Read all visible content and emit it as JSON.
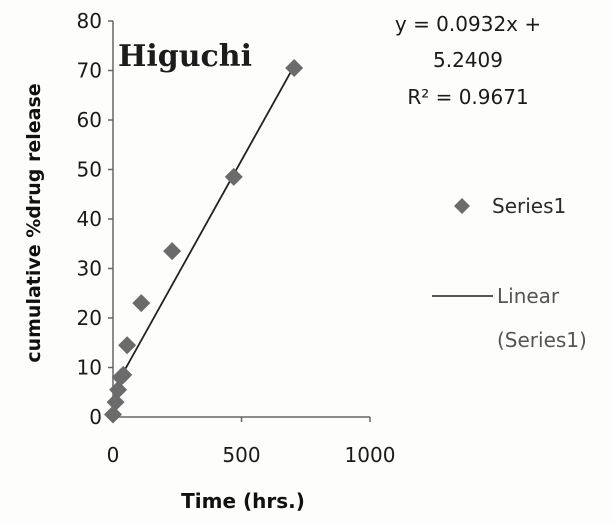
{
  "chart_data": {
    "type": "scatter",
    "title": "Higuchi",
    "xlabel": "Time (hrs.)",
    "ylabel": "cumulative %drug release",
    "xlim": [
      0,
      1000
    ],
    "ylim": [
      0,
      80
    ],
    "x_ticks": [
      "0",
      "500",
      "1000"
    ],
    "y_ticks": [
      "0",
      "10",
      "20",
      "30",
      "40",
      "50",
      "60",
      "70",
      "80"
    ],
    "grid": false,
    "legend_position": "right",
    "series": [
      {
        "name": "Series1",
        "marker": "diamond",
        "color": "#6b6b6b",
        "x": [
          0,
          10,
          20,
          30,
          40,
          55,
          110,
          230,
          470,
          705
        ],
        "y": [
          0.5,
          3,
          5.5,
          8,
          8.5,
          14.5,
          23,
          33.5,
          48.5,
          70.5
        ]
      }
    ],
    "trendline": {
      "name": "Linear (Series1)",
      "color": "#222222",
      "equation_line1": "y = 0.0932x +",
      "equation_line2": "5.2409",
      "r_squared": "R² = 0.9671",
      "x_range": [
        0,
        705
      ]
    }
  }
}
